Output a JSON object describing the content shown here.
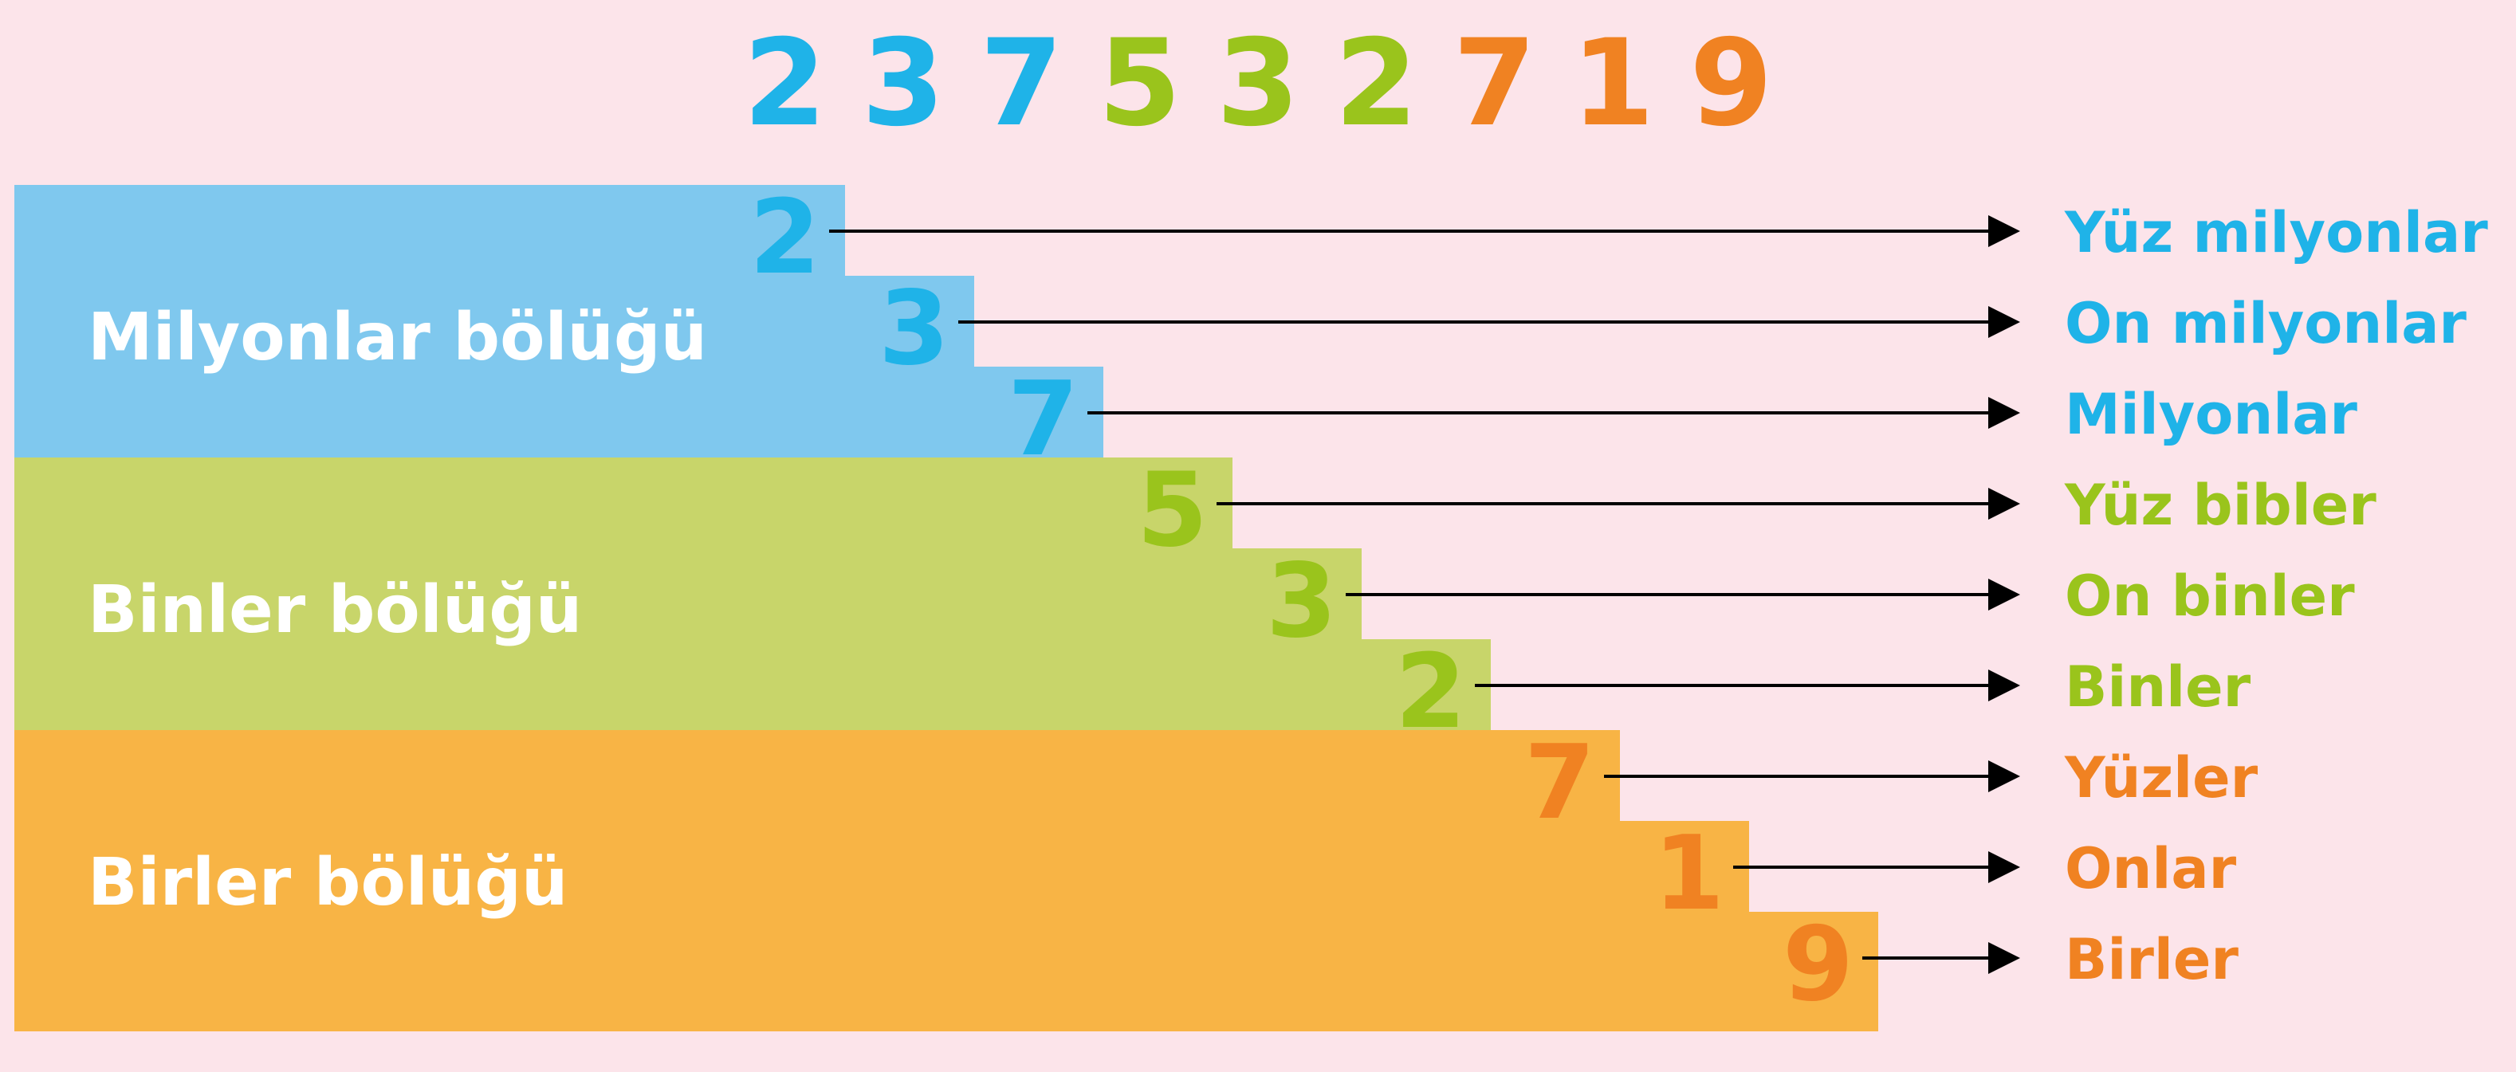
{
  "number": {
    "digits": [
      "2",
      "3",
      "7",
      "5",
      "3",
      "2",
      "7",
      "1",
      "9"
    ]
  },
  "colors": {
    "background": "#fce4ea",
    "millions": "#1fb3e8",
    "thousands": "#9ac41c",
    "units": "#f08222",
    "millions_band": "#7fc8ee",
    "thousands_band": "#c8d56a",
    "units_band": "#f8b445"
  },
  "groups": [
    {
      "label": "Milyonlar bölüğü",
      "color_key": "millions"
    },
    {
      "label": "Binler bölüğü",
      "color_key": "thousands"
    },
    {
      "label": "Birler bölüğü",
      "color_key": "units"
    }
  ],
  "places": [
    {
      "digit": "2",
      "name": "Yüz milyonlar",
      "group": 0
    },
    {
      "digit": "3",
      "name": "On milyonlar",
      "group": 0
    },
    {
      "digit": "7",
      "name": "Milyonlar",
      "group": 0
    },
    {
      "digit": "5",
      "name": "Yüz bibler",
      "group": 1
    },
    {
      "digit": "3",
      "name": "On binler",
      "group": 1
    },
    {
      "digit": "2",
      "name": "Binler",
      "group": 1
    },
    {
      "digit": "7",
      "name": "Yüzler",
      "group": 2
    },
    {
      "digit": "1",
      "name": "Onlar",
      "group": 2
    },
    {
      "digit": "9",
      "name": "Birler",
      "group": 2
    }
  ]
}
